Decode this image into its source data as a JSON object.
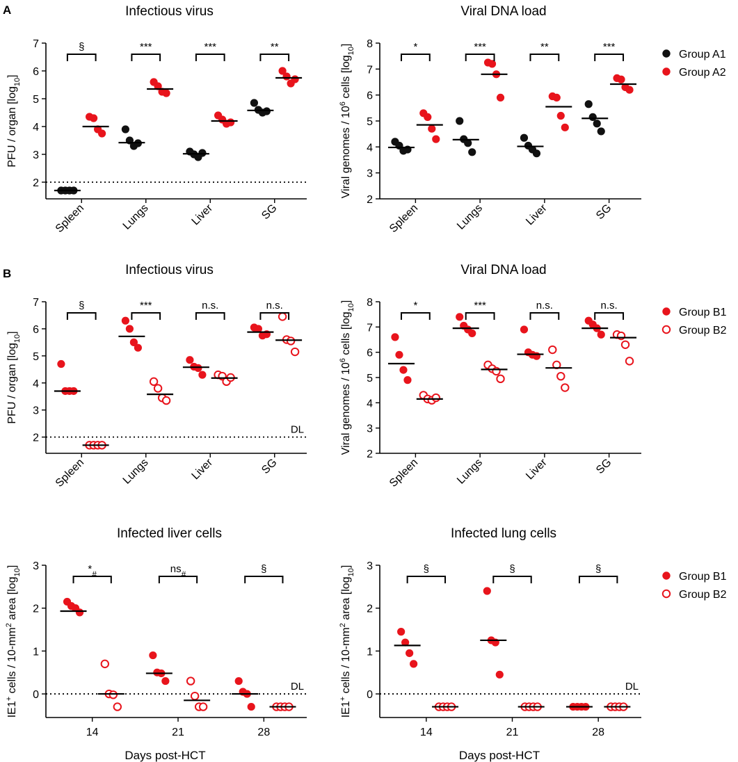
{
  "panel_labels": {
    "a": "A",
    "b": "B"
  },
  "colors": {
    "black": "#111111",
    "red": "#e8141c",
    "axis": "#000000"
  },
  "chart_data": [
    {
      "id": "a1",
      "type": "scatter",
      "title": "Infectious virus",
      "ylabel": "PFU / organ [log",
      "ylabel_sub": "10",
      "ylabel_close": "]",
      "xlabel": "",
      "ylim": [
        1.4,
        7
      ],
      "yticks": [
        "2",
        "3",
        "4",
        "5",
        "6",
        "7"
      ],
      "categories": [
        "Spleen",
        "Lungs",
        "Liver",
        "SG"
      ],
      "rotate_ticks": true,
      "dl": {
        "value": 2,
        "label": ""
      },
      "series": [
        {
          "name": "Group A1",
          "filled": true,
          "color": "#111111",
          "groups": [
            [
              1.7,
              1.7,
              1.7,
              1.7
            ],
            [
              3.9,
              3.5,
              3.3,
              3.4
            ],
            [
              3.1,
              3.0,
              2.9,
              3.05
            ],
            [
              4.85,
              4.6,
              4.5,
              4.55
            ]
          ],
          "medians": [
            1.7,
            3.42,
            3.02,
            4.58
          ]
        },
        {
          "name": "Group A2",
          "filled": true,
          "color": "#e8141c",
          "groups": [
            [
              4.35,
              4.3,
              3.9,
              3.75
            ],
            [
              5.6,
              5.45,
              5.25,
              5.2
            ],
            [
              4.4,
              4.25,
              4.1,
              4.15
            ],
            [
              6.0,
              5.8,
              5.55,
              5.7
            ]
          ],
          "medians": [
            4.0,
            5.35,
            4.2,
            5.75
          ]
        }
      ],
      "sig": [
        "§",
        "***",
        "***",
        "**"
      ]
    },
    {
      "id": "a2",
      "type": "scatter",
      "title": "Viral  DNA load",
      "ylabel": "Viral genomes / 10",
      "ylabel_sup": "6",
      "ylabel_rest": " cells [log",
      "ylabel_sub": "10",
      "ylabel_close": "]",
      "xlabel": "",
      "ylim": [
        2,
        8
      ],
      "yticks": [
        "2",
        "3",
        "4",
        "5",
        "6",
        "7",
        "8"
      ],
      "categories": [
        "Spleen",
        "Lungs",
        "Liver",
        "SG"
      ],
      "rotate_ticks": true,
      "dl": null,
      "series": [
        {
          "name": "Group A1",
          "filled": true,
          "color": "#111111",
          "groups": [
            [
              4.2,
              4.05,
              3.85,
              3.9
            ],
            [
              5.0,
              4.3,
              4.15,
              3.8
            ],
            [
              4.35,
              4.05,
              3.9,
              3.75
            ],
            [
              5.65,
              5.15,
              4.9,
              4.6
            ]
          ],
          "medians": [
            3.98,
            4.28,
            4.02,
            5.1
          ]
        },
        {
          "name": "Group A2",
          "filled": true,
          "color": "#e8141c",
          "groups": [
            [
              5.3,
              5.15,
              4.7,
              4.3
            ],
            [
              7.25,
              7.2,
              6.8,
              5.9
            ],
            [
              5.95,
              5.9,
              5.2,
              4.75
            ],
            [
              6.65,
              6.6,
              6.3,
              6.2
            ]
          ],
          "medians": [
            4.85,
            6.8,
            5.55,
            6.42
          ]
        }
      ],
      "sig": [
        "*",
        "***",
        "**",
        "***"
      ]
    },
    {
      "id": "b1",
      "type": "scatter",
      "title": "Infectious virus",
      "ylabel": "PFU / organ [log",
      "ylabel_sub": "10",
      "ylabel_close": "]",
      "xlabel": "",
      "ylim": [
        1.4,
        7
      ],
      "yticks": [
        "2",
        "3",
        "4",
        "5",
        "6",
        "7"
      ],
      "categories": [
        "Spleen",
        "Lungs",
        "Liver",
        "SG"
      ],
      "rotate_ticks": true,
      "dl": {
        "value": 2,
        "label": "DL"
      },
      "series": [
        {
          "name": "Group B1",
          "filled": true,
          "color": "#e8141c",
          "groups": [
            [
              4.7,
              3.7,
              3.7,
              3.7
            ],
            [
              6.3,
              6.0,
              5.5,
              5.3
            ],
            [
              4.85,
              4.6,
              4.55,
              4.3
            ],
            [
              6.05,
              6.0,
              5.75,
              5.8
            ]
          ],
          "medians": [
            3.7,
            5.72,
            4.58,
            5.88
          ]
        },
        {
          "name": "Group B2",
          "filled": false,
          "color": "#e8141c",
          "groups": [
            [
              1.7,
              1.7,
              1.7,
              1.7
            ],
            [
              4.05,
              3.8,
              3.45,
              3.35
            ],
            [
              4.3,
              4.25,
              4.05,
              4.2
            ],
            [
              6.45,
              5.6,
              5.55,
              5.15
            ]
          ],
          "medians": [
            1.7,
            3.58,
            4.18,
            5.58
          ]
        }
      ],
      "sig": [
        "§",
        "***",
        "n.s.",
        "n.s."
      ]
    },
    {
      "id": "b2",
      "type": "scatter",
      "title": "Viral  DNA load",
      "ylabel": "Viral genomes / 10",
      "ylabel_sup": "6",
      "ylabel_rest": " cells [log",
      "ylabel_sub": "10",
      "ylabel_close": "]",
      "xlabel": "",
      "ylim": [
        2,
        8
      ],
      "yticks": [
        "2",
        "3",
        "4",
        "5",
        "6",
        "7",
        "8"
      ],
      "categories": [
        "Spleen",
        "Lungs",
        "Liver",
        "SG"
      ],
      "rotate_ticks": true,
      "dl": null,
      "series": [
        {
          "name": "Group B1",
          "filled": true,
          "color": "#e8141c",
          "groups": [
            [
              6.6,
              5.9,
              5.3,
              4.9
            ],
            [
              7.4,
              7.05,
              6.9,
              6.75
            ],
            [
              6.9,
              6.0,
              5.9,
              5.85
            ],
            [
              7.25,
              7.1,
              6.95,
              6.7
            ]
          ],
          "medians": [
            5.55,
            6.95,
            5.92,
            6.95
          ]
        },
        {
          "name": "Group B2",
          "filled": false,
          "color": "#e8141c",
          "groups": [
            [
              4.3,
              4.15,
              4.1,
              4.2
            ],
            [
              5.5,
              5.35,
              5.25,
              4.95
            ],
            [
              6.1,
              5.5,
              5.05,
              4.6
            ],
            [
              6.7,
              6.65,
              6.3,
              5.65
            ]
          ],
          "medians": [
            4.15,
            5.32,
            5.38,
            6.58
          ]
        }
      ],
      "sig": [
        "*",
        "***",
        "n.s.",
        "n.s."
      ]
    },
    {
      "id": "c1",
      "type": "scatter",
      "title": "Infected liver cells",
      "ylabel": "IE1",
      "ylabel_sup": "+",
      "ylabel_rest": " cells / 10-mm",
      "ylabel_sup2": "2",
      "ylabel_rest2": " area [log",
      "ylabel_sub": "10",
      "ylabel_close": "]",
      "xlabel": "Days post-HCT",
      "ylim": [
        -0.55,
        3
      ],
      "yticks": [
        "0",
        "1",
        "2",
        "3"
      ],
      "categories": [
        "14",
        "21",
        "28"
      ],
      "rotate_ticks": false,
      "dl": {
        "value": 0,
        "label": "DL"
      },
      "series": [
        {
          "name": "Group B1",
          "filled": true,
          "color": "#e8141c",
          "groups": [
            [
              2.15,
              2.05,
              2.0,
              1.9
            ],
            [
              0.9,
              0.5,
              0.48,
              0.3
            ],
            [
              0.3,
              0.05,
              0.0,
              -0.3
            ]
          ],
          "medians": [
            1.93,
            0.48,
            0.0
          ]
        },
        {
          "name": "Group B2",
          "filled": false,
          "color": "#e8141c",
          "groups": [
            [
              0.7,
              0.0,
              -0.02,
              -0.3
            ],
            [
              0.3,
              -0.05,
              -0.3,
              -0.3
            ],
            [
              -0.3,
              -0.3,
              -0.3,
              -0.3
            ]
          ],
          "medians": [
            0.0,
            -0.15,
            -0.3
          ]
        }
      ],
      "sig": [
        "*#",
        "ns#",
        "§"
      ]
    },
    {
      "id": "c2",
      "type": "scatter",
      "title": "Infected lung cells",
      "ylabel": "IE1",
      "ylabel_sup": "+",
      "ylabel_rest": " cells / 10-mm",
      "ylabel_sup2": "2",
      "ylabel_rest2": " area [log",
      "ylabel_sub": "10",
      "ylabel_close": "]",
      "xlabel": "Days post-HCT",
      "ylim": [
        -0.55,
        3
      ],
      "yticks": [
        "0",
        "1",
        "2",
        "3"
      ],
      "categories": [
        "14",
        "21",
        "28"
      ],
      "rotate_ticks": false,
      "dl": {
        "value": 0,
        "label": "DL"
      },
      "series": [
        {
          "name": "Group B1",
          "filled": true,
          "color": "#e8141c",
          "groups": [
            [
              1.45,
              1.2,
              0.95,
              0.7
            ],
            [
              2.4,
              1.25,
              1.2,
              0.45
            ],
            [
              -0.3,
              -0.3,
              -0.3,
              -0.3
            ]
          ],
          "medians": [
            1.13,
            1.25,
            -0.3
          ]
        },
        {
          "name": "Group B2",
          "filled": false,
          "color": "#e8141c",
          "groups": [
            [
              -0.3,
              -0.3,
              -0.3,
              -0.3
            ],
            [
              -0.3,
              -0.3,
              -0.3,
              -0.3
            ],
            [
              -0.3,
              -0.3,
              -0.3,
              -0.3
            ]
          ],
          "medians": [
            -0.3,
            -0.3,
            -0.3
          ]
        }
      ],
      "sig": [
        "§",
        "§",
        "§"
      ]
    }
  ],
  "legends": [
    {
      "id": "legend-a",
      "entries": [
        {
          "name": "Group A1",
          "filled": true,
          "color": "#111111"
        },
        {
          "name": "Group A2",
          "filled": true,
          "color": "#e8141c"
        }
      ]
    },
    {
      "id": "legend-b",
      "entries": [
        {
          "name": "Group B1",
          "filled": true,
          "color": "#e8141c"
        },
        {
          "name": "Group B2",
          "filled": false,
          "color": "#e8141c"
        }
      ]
    },
    {
      "id": "legend-c",
      "entries": [
        {
          "name": "Group B1",
          "filled": true,
          "color": "#e8141c"
        },
        {
          "name": "Group B2",
          "filled": false,
          "color": "#e8141c"
        }
      ]
    }
  ]
}
